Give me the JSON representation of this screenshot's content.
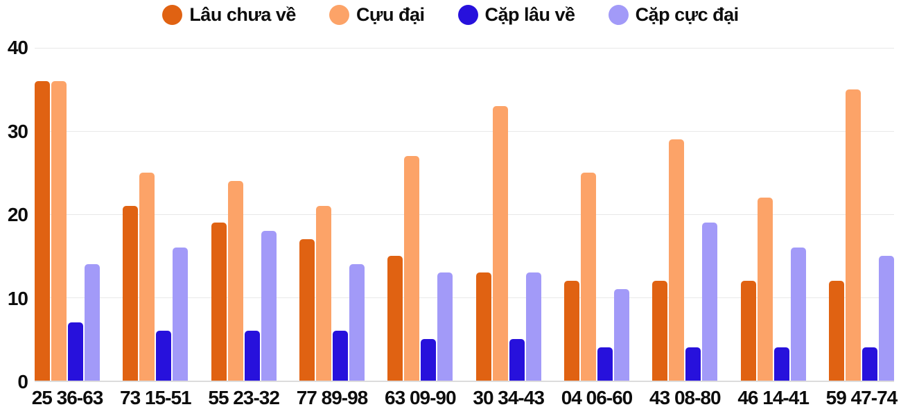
{
  "colors": {
    "background": "#ffffff",
    "text": "#0d0d0d",
    "gridline": "#e8e8e8",
    "baseline": "#dcdcdc"
  },
  "chart_data": {
    "type": "bar",
    "title": "",
    "xlabel": "",
    "ylabel": "",
    "ylim": [
      0,
      40
    ],
    "yticks": [
      0,
      10,
      20,
      30,
      40
    ],
    "grid": true,
    "legend_position": "top",
    "categories": [
      "25 36-63",
      "73 15-51",
      "55 23-32",
      "77 89-98",
      "63 09-90",
      "30 34-43",
      "04 06-60",
      "43 08-80",
      "46 14-41",
      "59 47-74"
    ],
    "series": [
      {
        "name": "Lâu chưa về",
        "color": "#e06212",
        "values": [
          36,
          21,
          19,
          17,
          15,
          13,
          12,
          12,
          12,
          12
        ]
      },
      {
        "name": "Cựu đại",
        "color": "#fca368",
        "values": [
          36,
          25,
          24,
          21,
          27,
          33,
          25,
          29,
          22,
          35
        ]
      },
      {
        "name": "Cặp lâu về",
        "color": "#2711dc",
        "values": [
          7,
          6,
          6,
          6,
          5,
          5,
          4,
          4,
          4,
          4
        ]
      },
      {
        "name": "Cặp cực đại",
        "color": "#a29af8",
        "values": [
          14,
          16,
          18,
          14,
          13,
          13,
          11,
          19,
          16,
          15
        ]
      }
    ]
  }
}
